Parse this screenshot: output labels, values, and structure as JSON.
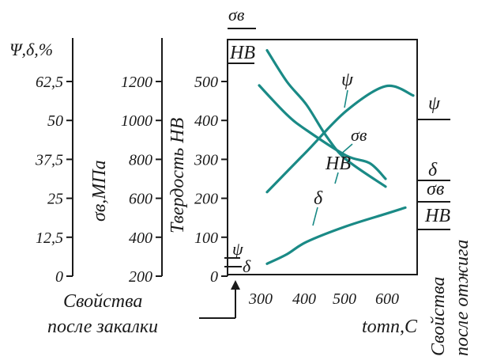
{
  "chart_data": {
    "type": "line",
    "axes": {
      "psi_delta": {
        "label": "Ψ,δ,%",
        "ticks": [
          "62,5",
          "50",
          "37,5",
          "25",
          "12,5",
          "0"
        ]
      },
      "sigma_b": {
        "label": "σв,МПа",
        "ticks": [
          "1200",
          "1000",
          "800",
          "600",
          "400",
          "200"
        ]
      },
      "hardness": {
        "label": "Твердость НВ",
        "ticks": [
          "500",
          "400",
          "300",
          "200",
          "100",
          "0"
        ]
      },
      "x": {
        "label": "tотп,С",
        "ticks": [
          "300",
          "400",
          "500",
          "600"
        ]
      }
    },
    "series": [
      {
        "name": "ψ",
        "axis": "psi_delta",
        "x": [
          300,
          400,
          500,
          600,
          670
        ],
        "y": [
          27,
          40,
          53,
          61,
          58
        ]
      },
      {
        "name": "σв",
        "axis": "sigma_b",
        "x": [
          280,
          350,
          400,
          500,
          560,
          600
        ],
        "y": [
          1180,
          1030,
          950,
          820,
          780,
          700
        ]
      },
      {
        "name": "НВ",
        "axis": "hardness",
        "x": [
          300,
          350,
          400,
          450,
          500,
          600
        ],
        "y": [
          580,
          500,
          440,
          360,
          300,
          230
        ]
      },
      {
        "name": "δ",
        "axis": "psi_delta",
        "x": [
          300,
          350,
          400,
          500,
          600,
          650
        ],
        "y": [
          4,
          7,
          11,
          16,
          20,
          22
        ]
      }
    ],
    "top_labels": {
      "sigma": "σв",
      "hb": "НВ"
    },
    "left_markers": {
      "psi": "ψ",
      "delta": "δ"
    },
    "right_markers": [
      "ψ",
      "δ",
      "σв",
      "НВ"
    ],
    "quench_label": [
      "Свойства",
      "после закалки"
    ],
    "anneal_label": [
      "Свойства",
      "после отжига"
    ],
    "colors": {
      "curve": "#1a8a86",
      "axis": "#1a1a1a"
    }
  }
}
